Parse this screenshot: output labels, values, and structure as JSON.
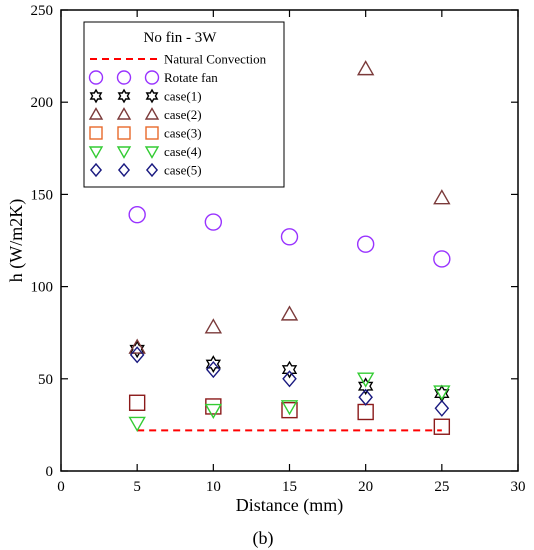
{
  "caption": "(b)",
  "chart_data": {
    "type": "scatter",
    "title": "No fin - 3W",
    "xlabel": "Distance (mm)",
    "ylabel": "h (W/m2K)",
    "xlim": [
      0,
      30
    ],
    "ylim": [
      0,
      250
    ],
    "xticks": [
      0,
      5,
      10,
      15,
      20,
      25,
      30
    ],
    "yticks": [
      0,
      50,
      100,
      150,
      200,
      250
    ],
    "grid": false,
    "legend_position": "top-left",
    "series": [
      {
        "name": "Natural Convection",
        "style": "dashed-line",
        "color": "#ff0000",
        "x": [
          5,
          25
        ],
        "y": [
          22,
          22
        ]
      },
      {
        "name": "Rotate fan",
        "marker": "circle",
        "color": "#9933ff",
        "x": [
          5,
          10,
          15,
          20,
          25
        ],
        "y": [
          139,
          135,
          127,
          123,
          115
        ]
      },
      {
        "name": "case(1)",
        "marker": "hexagram",
        "color": "#000000",
        "x": [
          5,
          10,
          15,
          20,
          25
        ],
        "y": [
          66,
          58,
          55,
          46,
          42
        ]
      },
      {
        "name": "case(2)",
        "marker": "triangle-up",
        "color": "#7b3a3a",
        "x": [
          5,
          10,
          15,
          20,
          25
        ],
        "y": [
          67,
          78,
          85,
          218,
          148
        ]
      },
      {
        "name": "case(3)",
        "marker": "square",
        "color": "#e8692a",
        "marker_color_points": "#8b1a1a",
        "x": [
          5,
          10,
          15,
          20,
          25
        ],
        "y": [
          37,
          35,
          33,
          32,
          24
        ]
      },
      {
        "name": "case(4)",
        "marker": "triangle-down",
        "color": "#33cc33",
        "x": [
          5,
          10,
          15,
          20,
          25
        ],
        "y": [
          26,
          33,
          35,
          50,
          43
        ]
      },
      {
        "name": "case(5)",
        "marker": "diamond",
        "color": "#1a1a80",
        "x": [
          5,
          10,
          15,
          20,
          25
        ],
        "y": [
          63,
          55,
          50,
          40,
          34
        ]
      }
    ]
  }
}
